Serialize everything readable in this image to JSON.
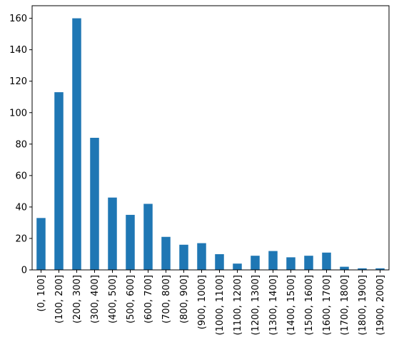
{
  "chart_data": {
    "type": "bar",
    "categories": [
      "(0, 100]",
      "(100, 200]",
      "(200, 300]",
      "(300, 400]",
      "(400, 500]",
      "(500, 600]",
      "(600, 700]",
      "(700, 800]",
      "(800, 900]",
      "(900, 1000]",
      "(1000, 1100]",
      "(1100, 1200]",
      "(1200, 1300]",
      "(1300, 1400]",
      "(1400, 1500]",
      "(1500, 1600]",
      "(1600, 1700]",
      "(1700, 1800]",
      "(1800, 1900]",
      "(1900, 2000]"
    ],
    "values": [
      33,
      113,
      160,
      84,
      46,
      35,
      42,
      21,
      16,
      17,
      10,
      4,
      9,
      12,
      8,
      9,
      11,
      2,
      1,
      1
    ],
    "color": "#1f77b4",
    "ylim": [
      0,
      168
    ],
    "yticks": [
      0,
      20,
      40,
      60,
      80,
      100,
      120,
      140,
      160
    ],
    "grid": false
  }
}
